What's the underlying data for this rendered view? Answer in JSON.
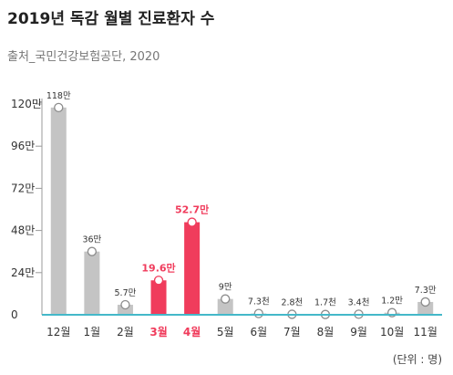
{
  "chart_data": {
    "type": "bar",
    "title": "2019년 독감 월별 진료환자 수",
    "subtitle": "출처_국민건강보험공단, 2020",
    "unit_label": "(단위 : 명)",
    "xlabel": "",
    "ylabel": "",
    "ylim": [
      0,
      120
    ],
    "yticks": [
      0,
      24,
      48,
      72,
      96,
      120
    ],
    "ytick_labels": [
      "0",
      "24만",
      "48만",
      "72만",
      "96만",
      "120만"
    ],
    "categories": [
      "12월",
      "1월",
      "2월",
      "3월",
      "4월",
      "5월",
      "6월",
      "7월",
      "8월",
      "9월",
      "10월",
      "11월"
    ],
    "values": [
      118,
      36,
      5.7,
      19.6,
      52.7,
      9,
      0.73,
      0.28,
      0.17,
      0.34,
      1.2,
      7.3
    ],
    "data_labels": [
      "118만",
      "36만",
      "5.7만",
      "19.6만",
      "52.7만",
      "9만",
      "7.3천",
      "2.8천",
      "1.7천",
      "3.4천",
      "1.2만",
      "7.3만"
    ],
    "highlight": [
      false,
      false,
      false,
      true,
      true,
      false,
      false,
      false,
      false,
      false,
      false,
      false
    ],
    "colors": {
      "bar": "#c4c4c4",
      "highlight": "#f03c5c",
      "baseline": "#44b8c9",
      "text": "#333333",
      "grid": "#9a9a9a"
    },
    "grid": false,
    "legend": "none"
  }
}
